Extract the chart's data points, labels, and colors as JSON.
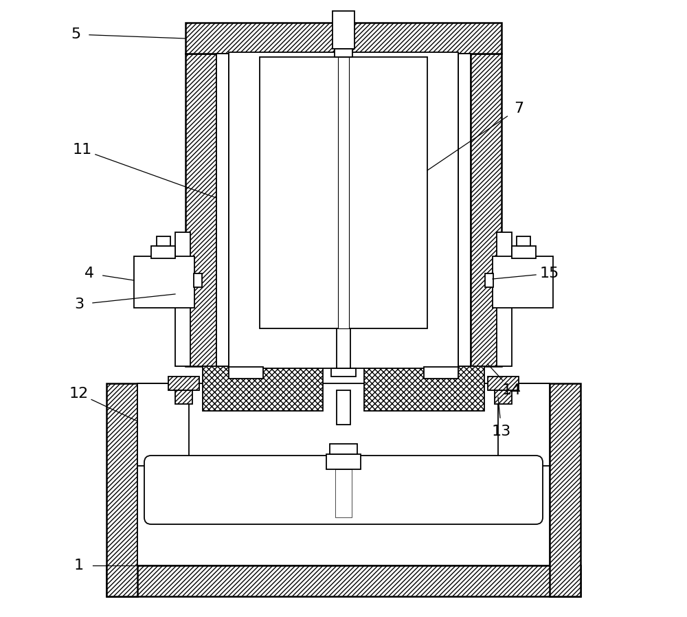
{
  "bg_color": "#ffffff",
  "line_color": "#000000",
  "fig_width": 10.0,
  "fig_height": 8.98,
  "dpi": 100
}
